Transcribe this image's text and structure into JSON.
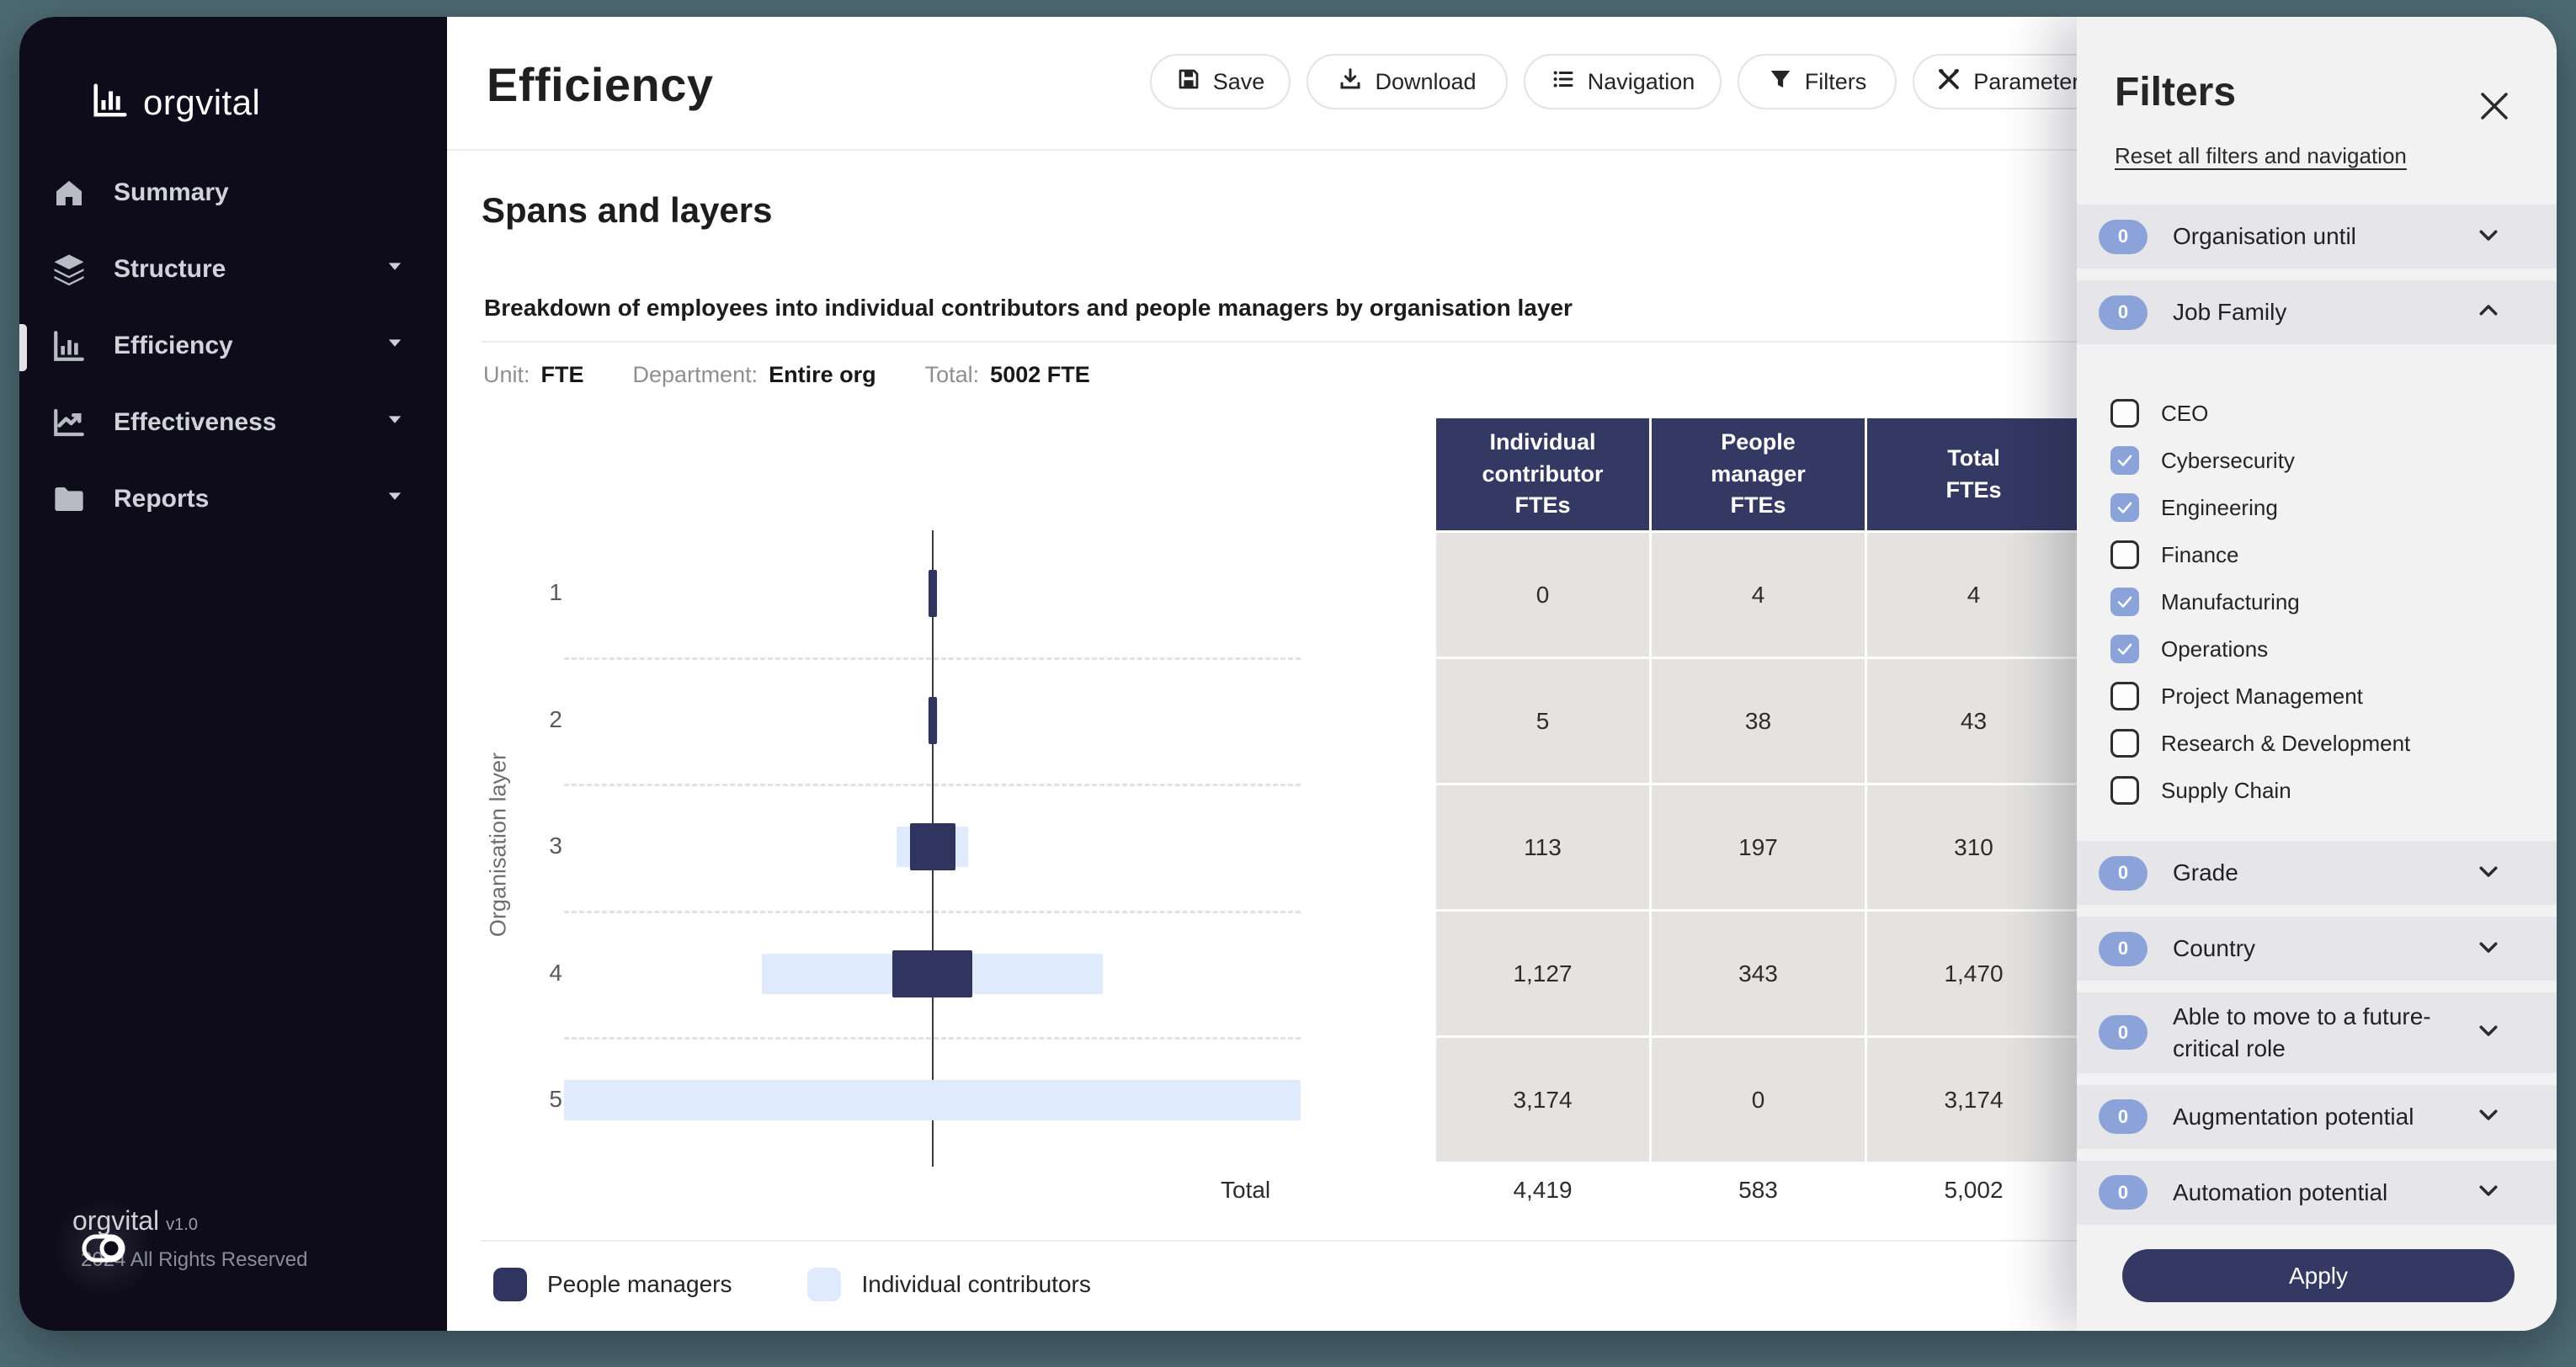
{
  "colors": {
    "page_background": "#4d6a73",
    "sidebar_background": "#0e0c1b",
    "accent_navy": "#333963",
    "light_blue": "#dfeafc",
    "badge_blue": "#8ba3d9",
    "table_cell_gray": "#e4e3e1",
    "panel_background": "#f2f2f3"
  },
  "sidebar": {
    "logo_text": "orgvital",
    "logo_icon": "bar-chart-icon",
    "items": [
      {
        "label": "Summary",
        "icon": "home-icon",
        "expandable": false,
        "active": false
      },
      {
        "label": "Structure",
        "icon": "layers-icon",
        "expandable": true,
        "active": false
      },
      {
        "label": "Efficiency",
        "icon": "bar-chart-icon",
        "expandable": true,
        "active": true
      },
      {
        "label": "Effectiveness",
        "icon": "line-chart-icon",
        "expandable": true,
        "active": false
      },
      {
        "label": "Reports",
        "icon": "folder-icon",
        "expandable": true,
        "active": false
      }
    ],
    "footer": {
      "brand": "orgvital",
      "version": "v1.0",
      "copyright": "2024 All Rights Reserved",
      "toggle_icon": "collapse-toggle-icon"
    }
  },
  "header": {
    "title": "Efficiency",
    "buttons": [
      {
        "label": "Save",
        "icon": "save-icon"
      },
      {
        "label": "Download",
        "icon": "download-icon"
      },
      {
        "label": "Navigation",
        "icon": "list-icon"
      },
      {
        "label": "Filters",
        "icon": "funnel-icon"
      },
      {
        "label": "Parameters",
        "icon": "tools-icon"
      }
    ]
  },
  "section": {
    "title": "Spans and layers",
    "subtitle": "Breakdown of employees into individual contributors and people managers by organisation layer",
    "meta": [
      {
        "label": "Unit:",
        "value": "FTE"
      },
      {
        "label": "Department:",
        "value": "Entire org"
      },
      {
        "label": "Total:",
        "value": "5002 FTE"
      }
    ]
  },
  "chart_data": {
    "type": "bar",
    "orientation": "horizontal-centered",
    "title": "Spans and layers",
    "ylabel": "Organisation layer",
    "categories": [
      "1",
      "2",
      "3",
      "4",
      "5"
    ],
    "series": [
      {
        "name": "People managers",
        "color": "#2f355f",
        "values": [
          4,
          38,
          197,
          343,
          0
        ]
      },
      {
        "name": "Individual contributors",
        "color": "#dfeafc",
        "values": [
          0,
          5,
          113,
          1127,
          3174
        ]
      }
    ],
    "totals": [
      4,
      43,
      310,
      1470,
      3174
    ],
    "xmax": 3174,
    "grid": "dashed-between-rows",
    "legend_position": "bottom-left",
    "total_label": "Total"
  },
  "table": {
    "columns": [
      "Individual\ncontributor\nFTEs",
      "People\nmanager\nFTEs",
      "Total\nFTEs"
    ],
    "rows": [
      [
        "0",
        "4",
        "4"
      ],
      [
        "5",
        "38",
        "43"
      ],
      [
        "113",
        "197",
        "310"
      ],
      [
        "1,127",
        "343",
        "1,470"
      ],
      [
        "3,174",
        "0",
        "3,174"
      ]
    ],
    "total_row": {
      "label": "Total",
      "values": [
        "4,419",
        "583",
        "5,002"
      ]
    }
  },
  "legend": [
    {
      "label": "People managers",
      "color": "#2f355f"
    },
    {
      "label": "Individual contributors",
      "color": "#dfeafc"
    }
  ],
  "filters_panel": {
    "title": "Filters",
    "close_icon": "close-icon",
    "reset_label": "Reset all filters and navigation",
    "groups": [
      {
        "badge": "0",
        "label": "Organisation until",
        "expanded": false
      },
      {
        "badge": "0",
        "label": "Job Family",
        "expanded": true,
        "options": [
          {
            "label": "CEO",
            "checked": false
          },
          {
            "label": "Cybersecurity",
            "checked": true
          },
          {
            "label": "Engineering",
            "checked": true
          },
          {
            "label": "Finance",
            "checked": false
          },
          {
            "label": "Manufacturing",
            "checked": true
          },
          {
            "label": "Operations",
            "checked": true
          },
          {
            "label": "Project Management",
            "checked": false
          },
          {
            "label": "Research & Development",
            "checked": false
          },
          {
            "label": "Supply Chain",
            "checked": false
          }
        ]
      },
      {
        "badge": "0",
        "label": "Grade",
        "expanded": false
      },
      {
        "badge": "0",
        "label": "Country",
        "expanded": false
      },
      {
        "badge": "0",
        "label": "Able to move to a future-critical role",
        "expanded": false
      },
      {
        "badge": "0",
        "label": "Augmentation potential",
        "expanded": false
      },
      {
        "badge": "0",
        "label": "Automation potential",
        "expanded": false
      }
    ],
    "apply_label": "Apply"
  }
}
